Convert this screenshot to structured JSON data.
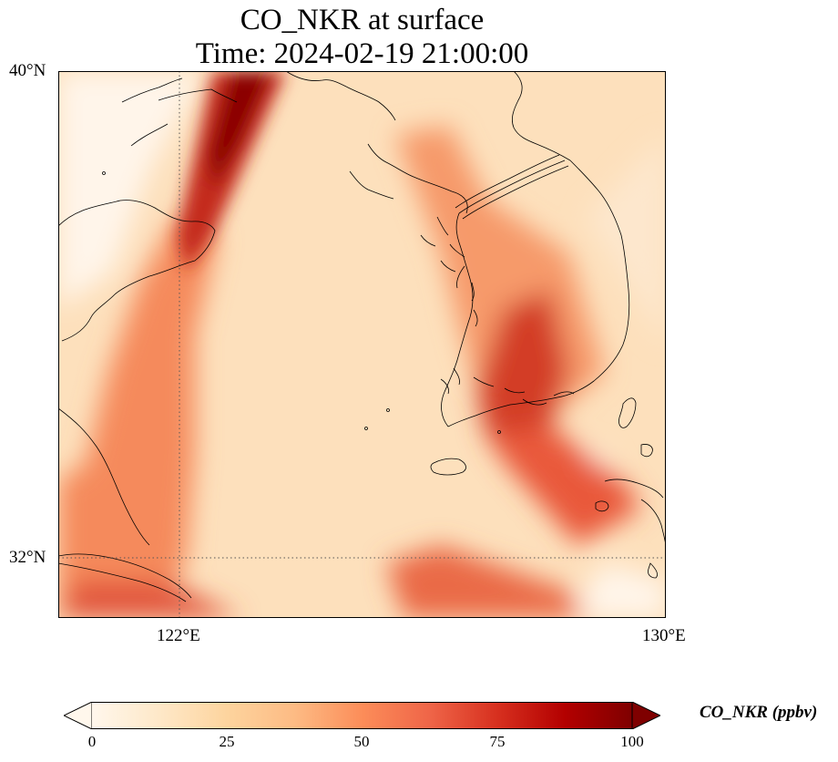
{
  "title_line1": "CO_NKR at surface",
  "title_line2": "Time: 2024-02-19 21:00:00",
  "variable": "CO_NKR",
  "units": "ppbv",
  "colorbar": {
    "label": "CO_NKR (ppbv)",
    "ticks": [
      "0",
      "25",
      "50",
      "75",
      "100"
    ],
    "min": 0,
    "max": 100,
    "colormap": "OrRd",
    "stops": [
      "#fff7ec",
      "#fee8c8",
      "#fdd49e",
      "#fdbb84",
      "#fc8d59",
      "#ef6548",
      "#d7301f",
      "#b30000",
      "#7f0000"
    ],
    "extend": "both"
  },
  "map": {
    "lon_range": [
      120,
      130
    ],
    "lat_range": [
      31,
      40
    ],
    "lon_ticks": [
      "122°E",
      "130°E"
    ],
    "lat_ticks": [
      "40°N",
      "32°N"
    ],
    "gridlines": {
      "lon": 122,
      "lat": 32,
      "style": "dotted"
    },
    "coastline_color": "#000000",
    "plumes": [
      {
        "name": "northwest band",
        "peak_ppbv": 100
      },
      {
        "name": "western coastal band",
        "peak_ppbv": 60
      },
      {
        "name": "korea west coast band",
        "peak_ppbv": 70
      },
      {
        "name": "southwest korea hotspot",
        "peak_ppbv": 90
      },
      {
        "name": "jeju-kyushu band",
        "peak_ppbv": 80
      },
      {
        "name": "southern band",
        "peak_ppbv": 75
      }
    ]
  }
}
